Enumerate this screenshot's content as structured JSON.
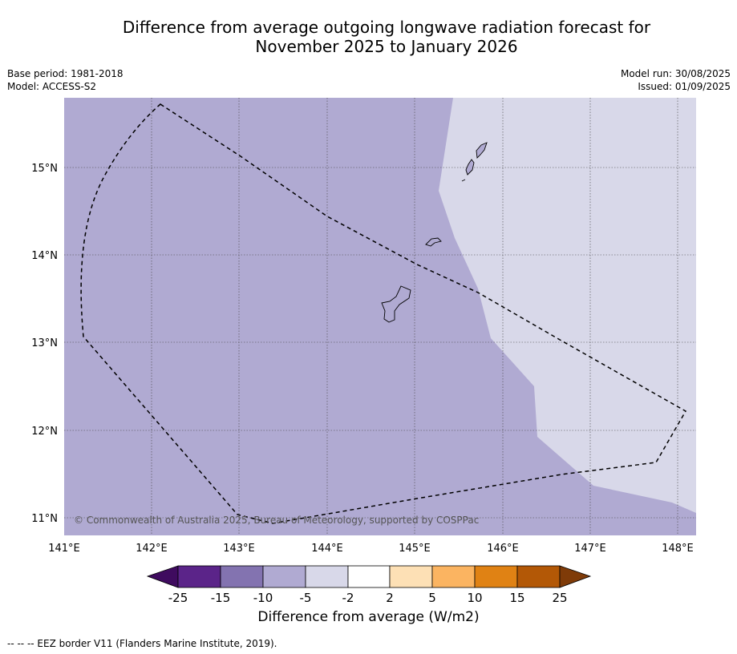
{
  "title_line1": "Difference from average outgoing longwave radiation forecast for",
  "title_line2": "November 2025 to January 2026",
  "meta_left": [
    "Base period: 1981-2018",
    "Model: ACCESS-S2"
  ],
  "meta_right": [
    "Model run: 30/08/2025",
    "Issued: 01/09/2025"
  ],
  "map": {
    "lon_range": [
      141,
      148.2
    ],
    "lat_range": [
      10.8,
      15.8
    ],
    "lon_labels": [
      "141°E",
      "142°E",
      "143°E",
      "144°E",
      "145°E",
      "146°E",
      "147°E",
      "148°E"
    ],
    "lat_labels": [
      "15°N",
      "14°N",
      "13°N",
      "12°N",
      "11°N"
    ],
    "fill_colors": {
      "band_-10_-5": "#b0aad2",
      "band_-5_-2": "#d8d8e9"
    },
    "copyright": "© Commonwealth of Australia 2025, Bureau of Meteorology, supported by COSPPac"
  },
  "colorbar": {
    "labels": [
      "-25",
      "-15",
      "-10",
      "-5",
      "-2",
      "2",
      "5",
      "10",
      "15",
      "25"
    ],
    "colors": [
      "#3f0b5f",
      "#5b2489",
      "#8373b0",
      "#b0aad2",
      "#d8d8e9",
      "#ffffff",
      "#fde0b5",
      "#fbb461",
      "#e08214",
      "#b35806",
      "#7f3b08"
    ],
    "title": "Difference from average (W/m2)"
  },
  "footnote": "--  --  -- EEZ border V11 (Flanders Marine Institute, 2019)."
}
